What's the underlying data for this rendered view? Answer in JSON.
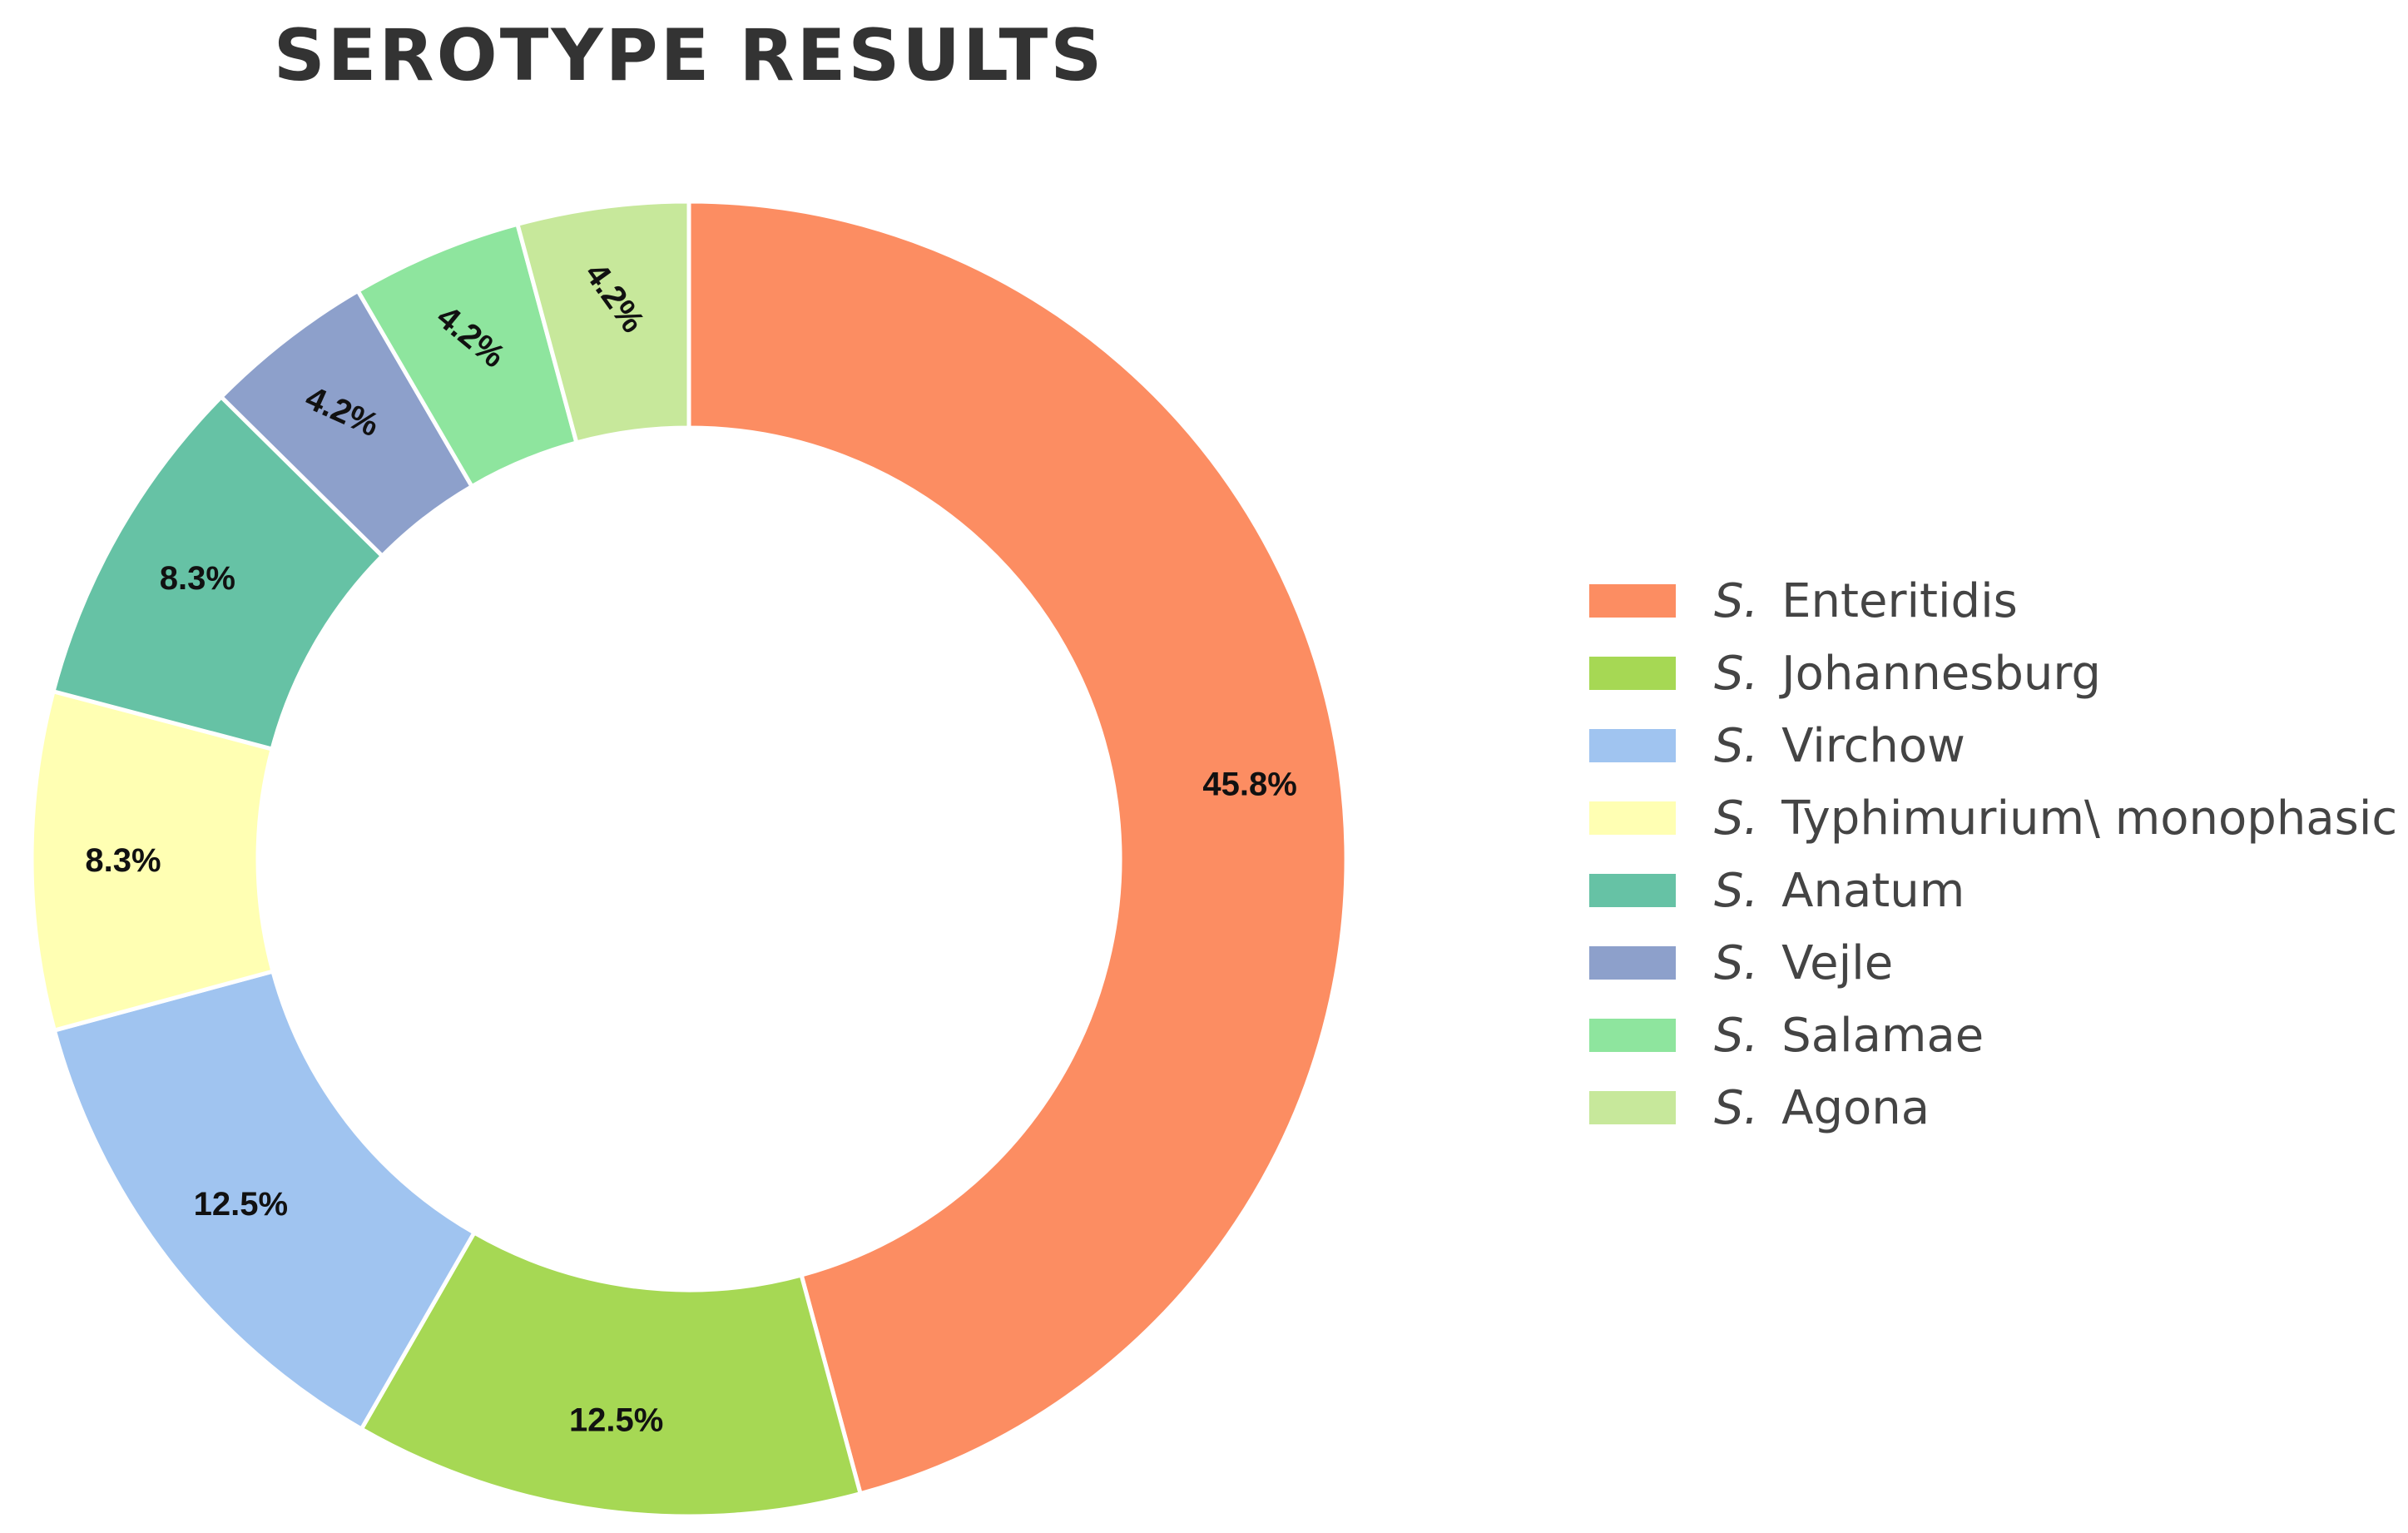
{
  "chart_data": {
    "type": "pie",
    "donut": true,
    "title": "SEROTYPE RESULTS",
    "legend_position": "right",
    "legend_prefix": "S.",
    "categories": [
      "Enteritidis",
      "Johannesburg",
      "Virchow",
      "Typhimurium\\ monophasic",
      "Anatum",
      "Vejle",
      "Salamae",
      "Agona"
    ],
    "values": [
      45.8,
      12.5,
      12.5,
      8.3,
      8.3,
      4.2,
      4.2,
      4.2
    ],
    "labels": [
      "45.8%",
      "12.5%",
      "12.5%",
      "8.3%",
      "8.3%",
      "4.2%",
      "4.2%",
      "4.2%"
    ],
    "colors": [
      "#fc8d62",
      "#a6d854",
      "#a0c4f0",
      "#ffffb3",
      "#66c2a5",
      "#8da0cb",
      "#8ee59e",
      "#c7e89b"
    ]
  }
}
